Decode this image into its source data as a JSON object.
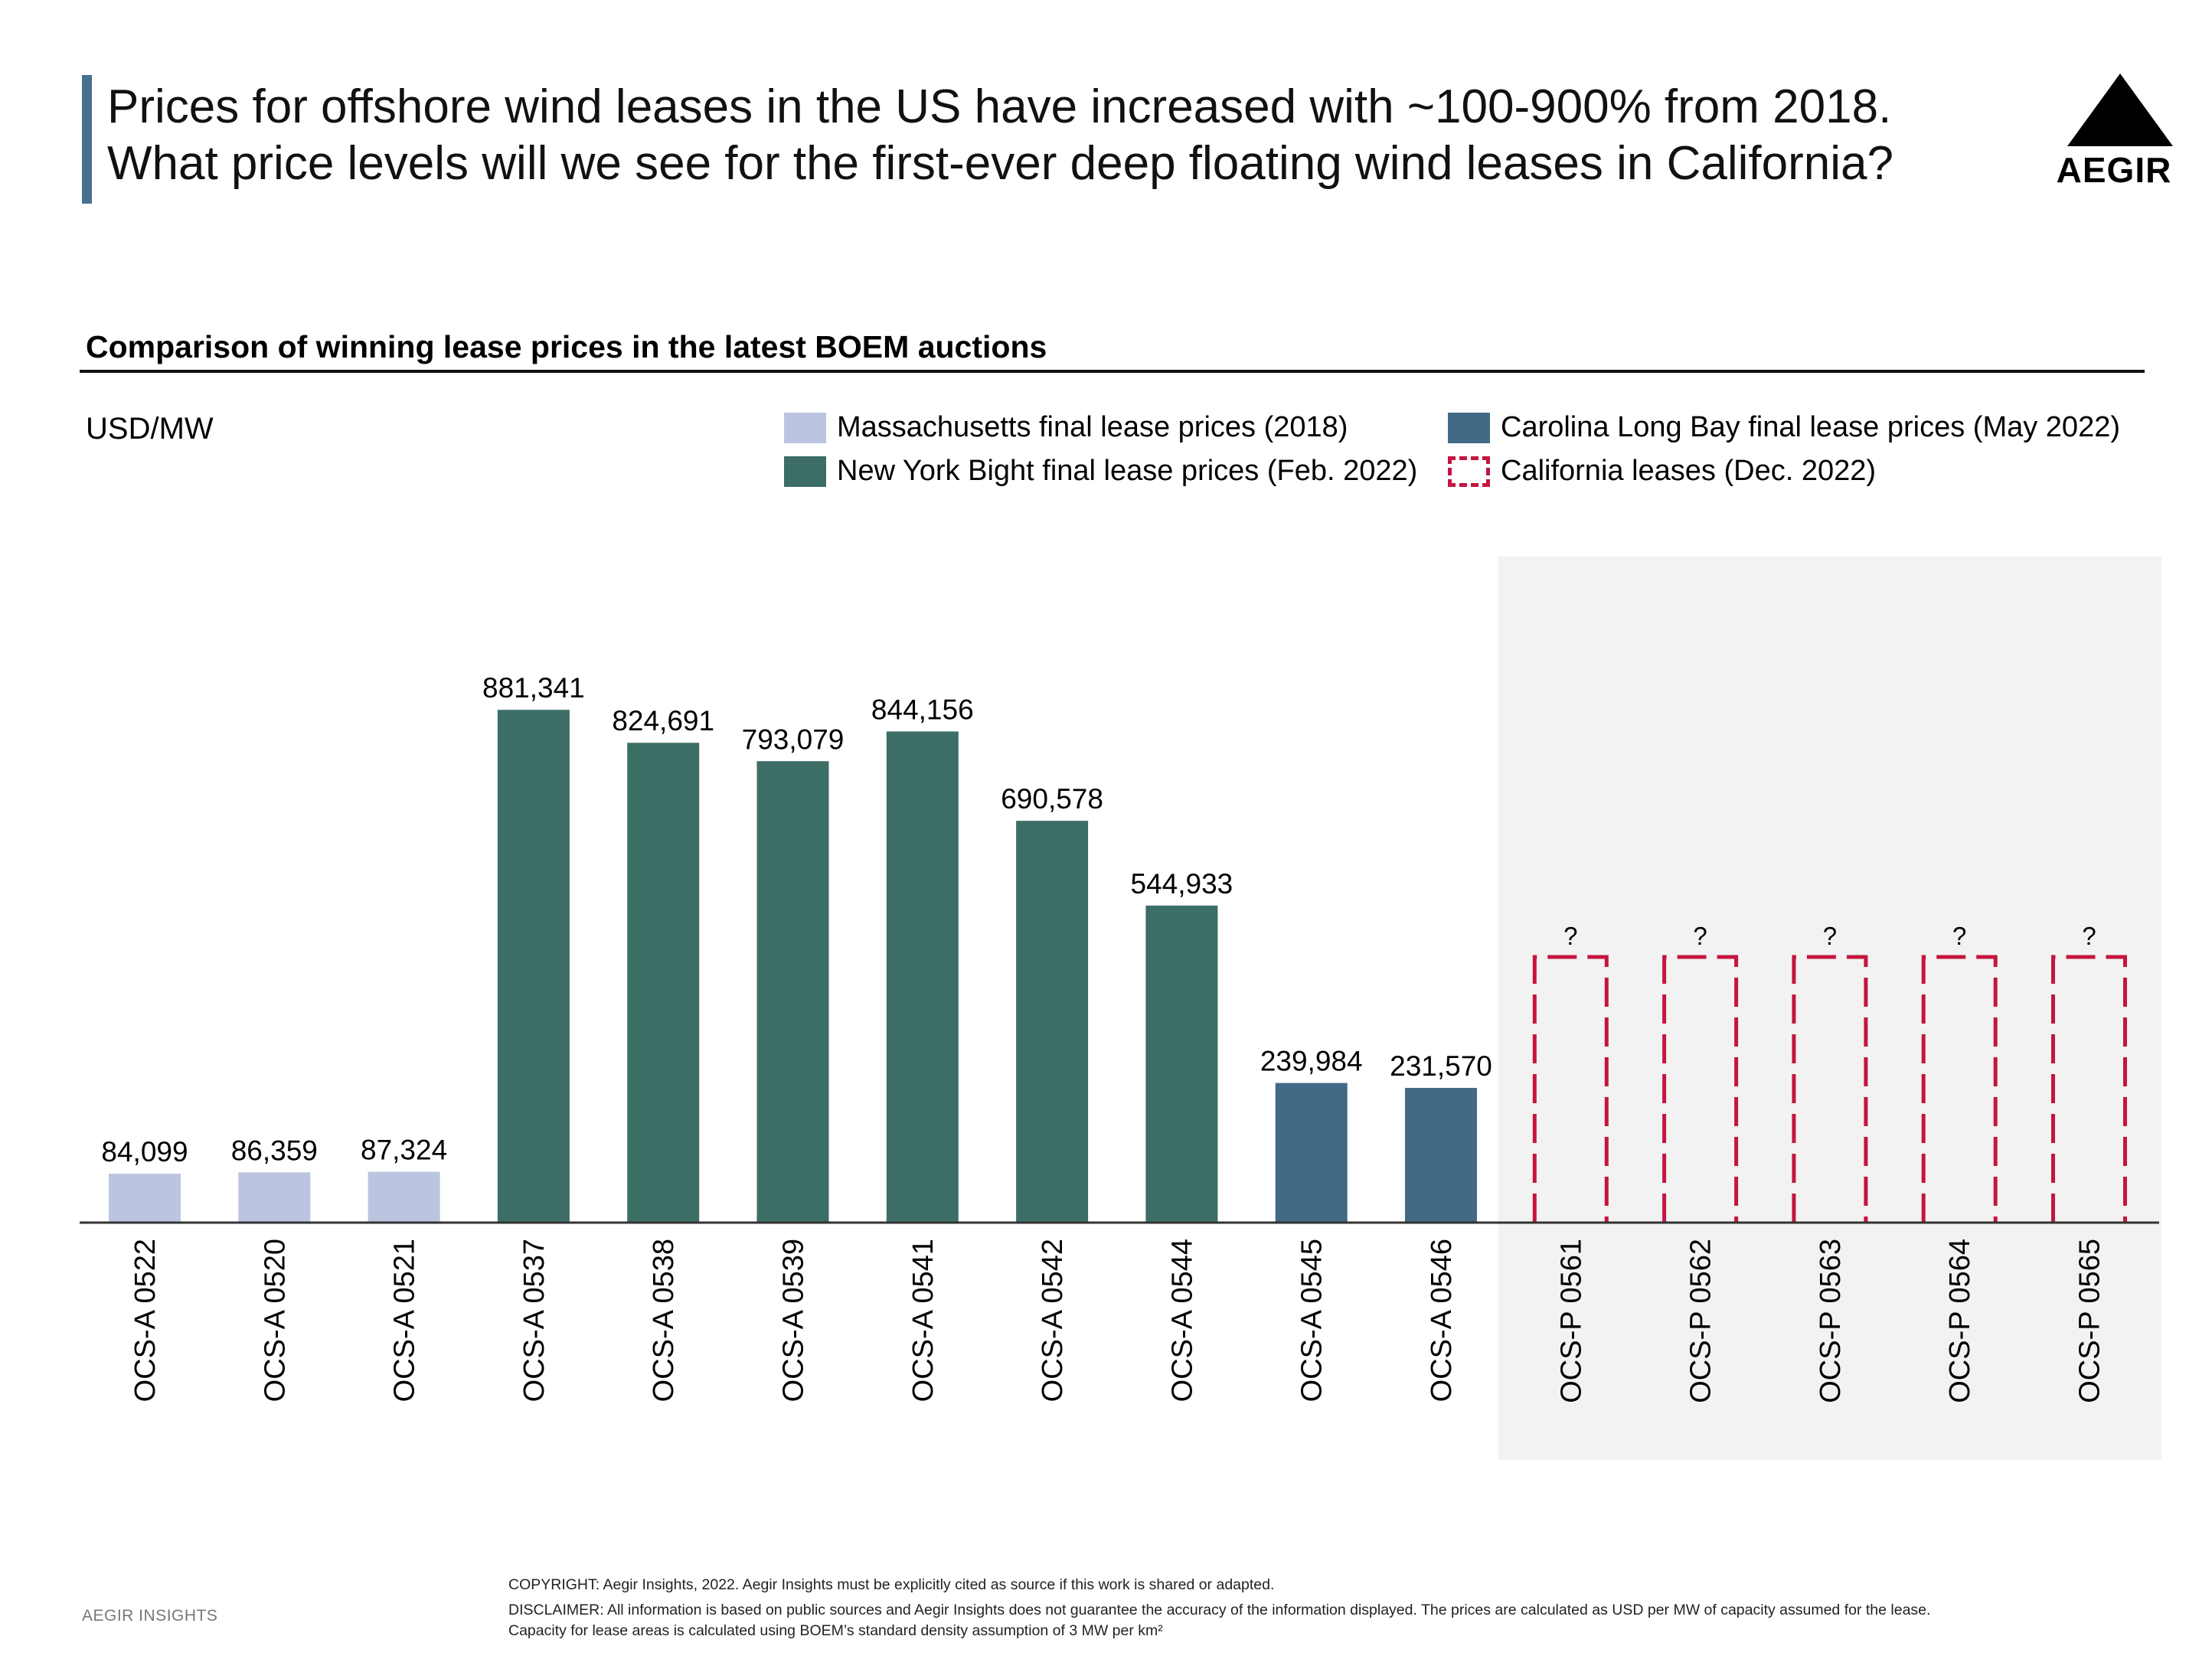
{
  "title_lines": [
    "Prices for offshore wind leases in the US have increased with ~100-900% from 2018.",
    "What price levels will we see for the first-ever deep floating wind leases in California?"
  ],
  "logo_text": "AEGIR",
  "subtitle": "Comparison of winning lease prices in the latest BOEM auctions",
  "unit": "USD/MW",
  "legend": [
    {
      "label": "Massachusetts final lease prices (2018)",
      "color": "#bcc5e0",
      "style": "solid"
    },
    {
      "label": "New York Bight final lease prices (Feb. 2022)",
      "color": "#3c6e66",
      "style": "solid"
    },
    {
      "label": "Carolina Long Bay final lease prices (May 2022)",
      "color": "#426a86",
      "style": "solid"
    },
    {
      "label": "California leases (Dec. 2022)",
      "color": "#c4153f",
      "style": "dashed"
    }
  ],
  "chart_data": {
    "type": "bar",
    "ylim": [
      0,
      1000000
    ],
    "categories": [
      "OCS-A 0522",
      "OCS-A 0520",
      "OCS-A 0521",
      "OCS-A 0537",
      "OCS-A 0538",
      "OCS-A 0539",
      "OCS-A 0541",
      "OCS-A 0542",
      "OCS-A 0544",
      "OCS-A 0545",
      "OCS-A 0546",
      "OCS-P 0561",
      "OCS-P 0562",
      "OCS-P 0563",
      "OCS-P 0564",
      "OCS-P 0565"
    ],
    "values": [
      84099,
      86359,
      87324,
      881341,
      824691,
      793079,
      844156,
      690578,
      544933,
      239984,
      231570,
      null,
      null,
      null,
      null,
      null
    ],
    "data_labels": [
      "84,099",
      "86,359",
      "87,324",
      "881,341",
      "824,691",
      "793,079",
      "844,156",
      "690,578",
      "544,933",
      "239,984",
      "231,570",
      "?",
      "?",
      "?",
      "?",
      "?"
    ],
    "group": [
      0,
      0,
      0,
      1,
      1,
      1,
      1,
      1,
      1,
      2,
      2,
      3,
      3,
      3,
      3,
      3
    ],
    "placeholder_value": 500000,
    "highlight_panel": "California leases shaded grey",
    "grid": false
  },
  "footer": {
    "brand": "AEGIR INSIGHTS",
    "copyright": "COPYRIGHT: Aegir Insights, 2022. Aegir Insights must be explicitly cited as source if this work is shared or adapted.",
    "disclaimer_lines": [
      "DISCLAIMER: All information is based on public sources and Aegir Insights does not guarantee the accuracy of the information displayed. The prices are calculated as USD per MW of capacity assumed for the lease.",
      "Capacity for lease areas is calculated using BOEM’s standard density assumption of 3 MW per km²"
    ]
  }
}
